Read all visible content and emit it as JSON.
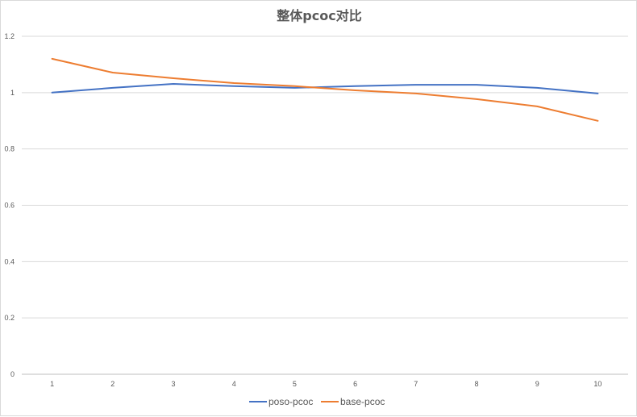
{
  "chart_data": {
    "type": "line",
    "title": "整体pcoc对比",
    "xlabel": "",
    "ylabel": "",
    "categories": [
      "1",
      "2",
      "3",
      "4",
      "5",
      "6",
      "7",
      "8",
      "9",
      "10"
    ],
    "ylim": [
      0,
      1.2
    ],
    "yticks": [
      "0",
      "0.2",
      "0.4",
      "0.6",
      "0.8",
      "1",
      "1.2"
    ],
    "grid": true,
    "legend_position": "bottom",
    "series": [
      {
        "name": "poso-pcoc",
        "color": "#4472C4",
        "values": [
          1.0,
          1.017,
          1.031,
          1.023,
          1.017,
          1.023,
          1.028,
          1.028,
          1.017,
          0.997
        ]
      },
      {
        "name": "base-pcoc",
        "color": "#ED7D31",
        "values": [
          1.12,
          1.071,
          1.051,
          1.034,
          1.023,
          1.008,
          0.997,
          0.977,
          0.951,
          0.9
        ]
      }
    ]
  }
}
